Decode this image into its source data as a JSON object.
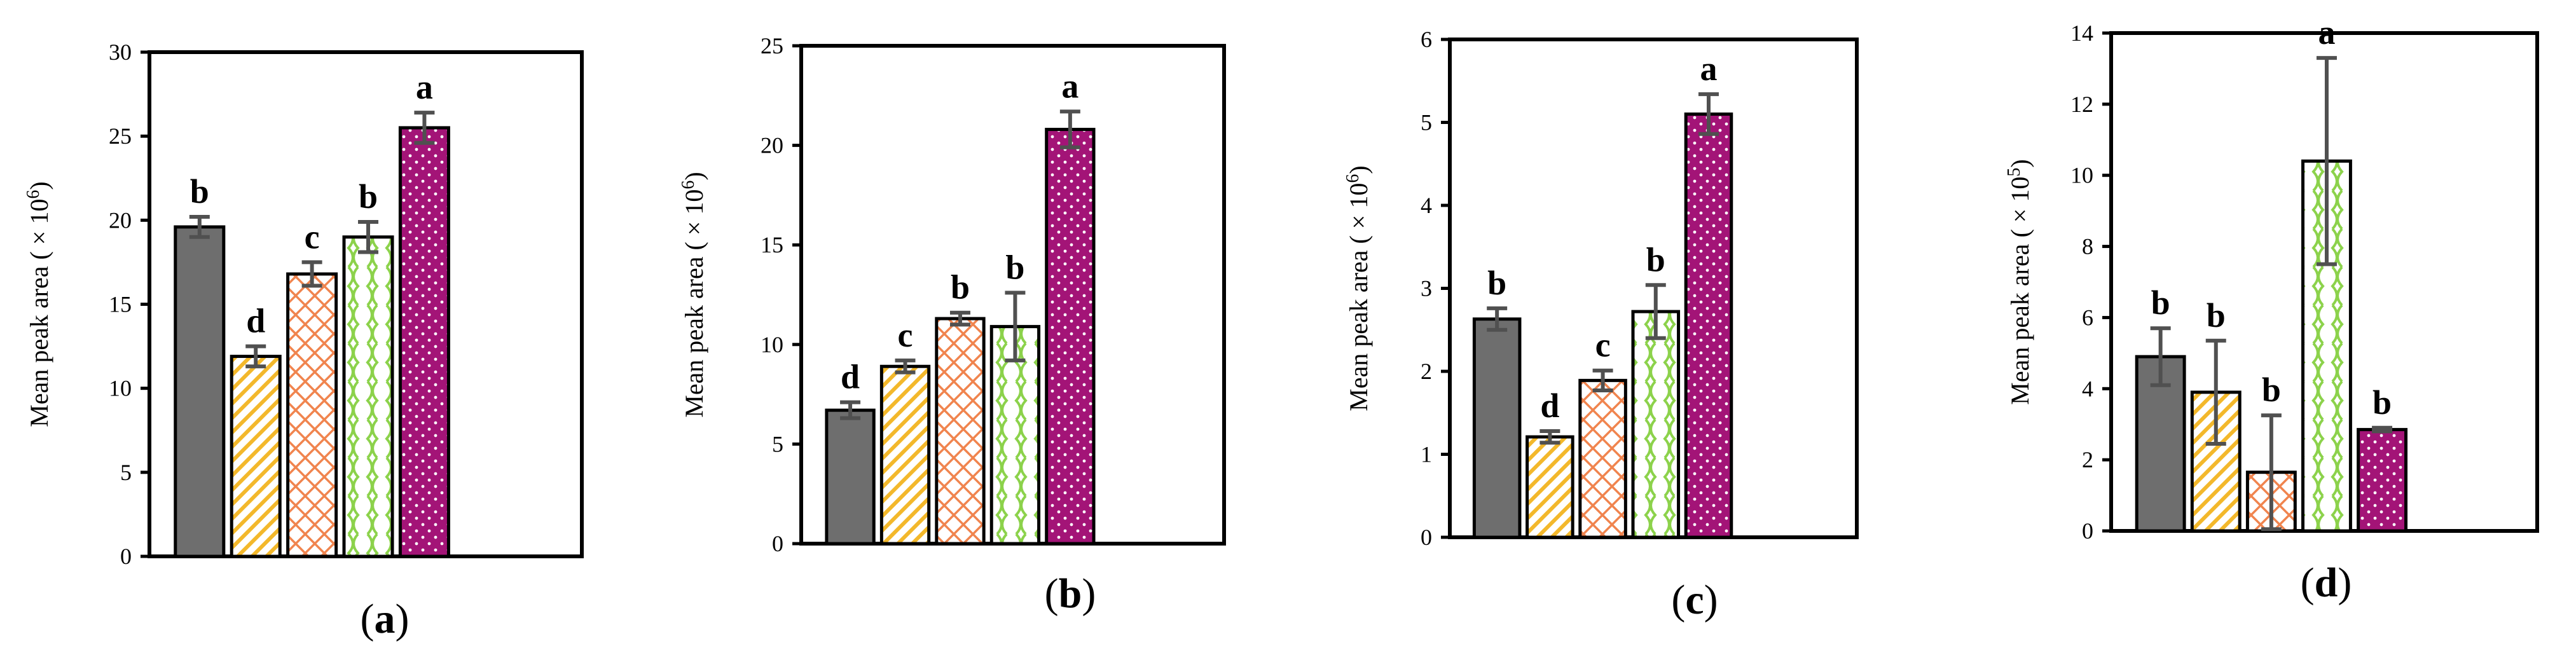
{
  "colors": {
    "grey": "#6E6E6E",
    "yellow": "#F3B82B",
    "orange": "#F0844E",
    "green": "#8CD24B",
    "magenta": "#A31477",
    "error_bar": "#505050"
  },
  "series_styles": [
    {
      "fill": "solid-grey"
    },
    {
      "fill": "yellow-diagonal-stripes"
    },
    {
      "fill": "orange-crosshatch"
    },
    {
      "fill": "green-wave"
    },
    {
      "fill": "magenta-dots"
    }
  ],
  "chart_data": [
    {
      "type": "bar",
      "caption_open": "(",
      "caption_letter": "a",
      "caption_close": ")",
      "ylabel_prefix": "Mean peak area ( × 10",
      "ylabel_exp": "6",
      "ylabel_suffix": ")",
      "ylim": [
        0,
        30
      ],
      "yticks": [
        0,
        5,
        10,
        15,
        20,
        25,
        30
      ],
      "ytick_labels": [
        "0",
        "5",
        "10",
        "15",
        "20",
        "25",
        "30"
      ],
      "values": [
        19.6,
        11.9,
        16.8,
        19.0,
        25.5
      ],
      "errors": [
        0.6,
        0.6,
        0.7,
        0.9,
        0.9
      ],
      "letters": [
        "b",
        "d",
        "c",
        "b",
        "a"
      ]
    },
    {
      "type": "bar",
      "caption_open": "(",
      "caption_letter": "b",
      "caption_close": ")",
      "ylabel_prefix": "Mean peak area ( × 10",
      "ylabel_exp": "6",
      "ylabel_suffix": ")",
      "ylim": [
        0,
        25
      ],
      "yticks": [
        0,
        5,
        10,
        15,
        20,
        25
      ],
      "ytick_labels": [
        "0",
        "5",
        "10",
        "15",
        "20",
        "25"
      ],
      "values": [
        6.7,
        8.9,
        11.3,
        10.9,
        20.8
      ],
      "errors": [
        0.4,
        0.3,
        0.3,
        1.7,
        0.9
      ],
      "letters": [
        "d",
        "c",
        "b",
        "b",
        "a"
      ]
    },
    {
      "type": "bar",
      "caption_open": "(",
      "caption_letter": "c",
      "caption_close": ")",
      "ylabel_prefix": "Mean peak area ( × 10",
      "ylabel_exp": "6",
      "ylabel_suffix": ")",
      "ylim": [
        0,
        6
      ],
      "yticks": [
        0,
        1,
        2,
        3,
        4,
        5,
        6
      ],
      "ytick_labels": [
        "0",
        "1",
        "2",
        "3",
        "4",
        "5",
        "6"
      ],
      "values": [
        2.63,
        1.21,
        1.89,
        2.72,
        5.1
      ],
      "errors": [
        0.13,
        0.07,
        0.12,
        0.32,
        0.24
      ],
      "letters": [
        "b",
        "d",
        "c",
        "b",
        "a"
      ]
    },
    {
      "type": "bar",
      "caption_open": "(",
      "caption_letter": "d",
      "caption_close": ")",
      "ylabel_prefix": "Mean peak area ( × 10",
      "ylabel_exp": "5",
      "ylabel_suffix": ")",
      "ylim": [
        0,
        14
      ],
      "yticks": [
        0,
        2,
        4,
        6,
        8,
        10,
        12,
        14
      ],
      "ytick_labels": [
        "0",
        "2",
        "4",
        "6",
        "8",
        "10",
        "12",
        "14"
      ],
      "values": [
        4.9,
        3.9,
        1.65,
        10.4,
        2.85
      ],
      "errors": [
        0.8,
        1.45,
        1.6,
        2.9,
        0.05
      ],
      "letters": [
        "b",
        "b",
        "b",
        "a",
        "b"
      ]
    }
  ]
}
